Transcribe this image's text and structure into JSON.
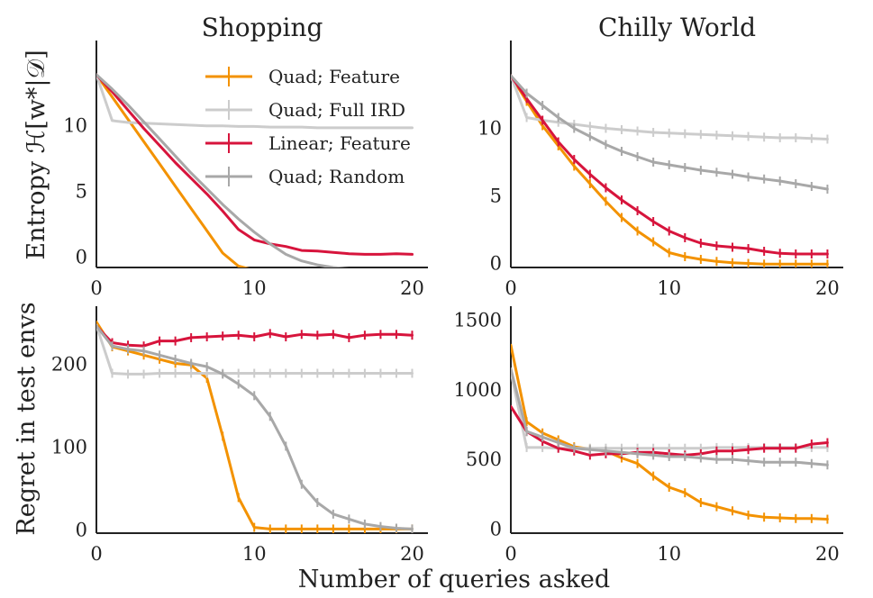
{
  "figure": {
    "xlabel": "Number of queries asked",
    "ylabel_top": "Entropy ℋ[w*|𝒟]",
    "ylabel_bottom": "Regret in test envs"
  },
  "legend": {
    "placement": "top-left panel, upper-middle",
    "entries": [
      {
        "name": "Quad; Feature",
        "color": "#F39200"
      },
      {
        "name": "Quad; Full IRD",
        "color": "#CCCCCC"
      },
      {
        "name": "Linear; Feature",
        "color": "#D7143C"
      },
      {
        "name": "Quad; Random",
        "color": "#A8A8A8"
      }
    ]
  },
  "chart_data": [
    {
      "id": "shopping-entropy",
      "type": "line",
      "title": "Shopping",
      "xlabel": "",
      "ylabel": "Entropy ℋ[w*|𝒟]",
      "xlim": [
        0,
        21
      ],
      "ylim": [
        -0.8,
        16.5
      ],
      "xticks": [
        0,
        10,
        20
      ],
      "yticks": [
        0,
        5,
        10
      ],
      "error_bars": false,
      "series": [
        {
          "name": "Quad; Feature",
          "color": "#F39200",
          "x": [
            0,
            1,
            2,
            3,
            4,
            5,
            6,
            7,
            8,
            9,
            10,
            11,
            12,
            13,
            14,
            15,
            16,
            17,
            18,
            19,
            20
          ],
          "values": [
            13.9,
            12.2,
            10.5,
            8.8,
            7.1,
            5.4,
            3.7,
            2.0,
            0.3,
            -0.7,
            -1.0,
            -1.1,
            -1.1,
            -1.1,
            -1.1,
            -1.1,
            -1.1,
            -1.1,
            -1.1,
            -1.1,
            -1.1
          ]
        },
        {
          "name": "Quad; Full IRD",
          "color": "#CCCCCC",
          "x": [
            0,
            1,
            2,
            3,
            4,
            5,
            6,
            7,
            8,
            9,
            10,
            11,
            12,
            13,
            14,
            15,
            16,
            17,
            18,
            19,
            20
          ],
          "values": [
            13.9,
            10.4,
            10.25,
            10.2,
            10.15,
            10.1,
            10.05,
            10.0,
            10.0,
            9.95,
            9.95,
            9.9,
            9.9,
            9.9,
            9.85,
            9.85,
            9.85,
            9.85,
            9.85,
            9.85,
            9.85
          ]
        },
        {
          "name": "Linear; Feature",
          "color": "#D7143C",
          "x": [
            0,
            1,
            2,
            3,
            4,
            5,
            6,
            7,
            8,
            9,
            10,
            11,
            12,
            13,
            14,
            15,
            16,
            17,
            18,
            19,
            20
          ],
          "values": [
            13.9,
            12.6,
            11.2,
            9.8,
            8.5,
            7.2,
            6.0,
            4.8,
            3.5,
            2.1,
            1.3,
            1.0,
            0.8,
            0.5,
            0.45,
            0.35,
            0.25,
            0.2,
            0.2,
            0.25,
            0.2
          ]
        },
        {
          "name": "Quad; Random",
          "color": "#A8A8A8",
          "x": [
            0,
            1,
            2,
            3,
            4,
            5,
            6,
            7,
            8,
            9,
            10,
            11,
            12,
            13,
            14,
            15,
            16,
            17,
            18,
            19,
            20
          ],
          "values": [
            13.9,
            12.8,
            11.6,
            10.3,
            9.0,
            7.7,
            6.4,
            5.2,
            4.0,
            2.9,
            1.9,
            1.0,
            0.2,
            -0.3,
            -0.6,
            -0.8,
            -0.9,
            -1.0,
            -1.05,
            -1.1,
            -1.1
          ]
        }
      ]
    },
    {
      "id": "chilly-entropy",
      "type": "line",
      "title": "Chilly World",
      "xlabel": "",
      "ylabel": "",
      "xlim": [
        0,
        21
      ],
      "ylim": [
        -0.3,
        16.5
      ],
      "xticks": [
        0,
        10,
        20
      ],
      "yticks": [
        0,
        5,
        10
      ],
      "error_bars": true,
      "series": [
        {
          "name": "Quad; Feature",
          "color": "#F39200",
          "x": [
            0,
            1,
            2,
            3,
            4,
            5,
            6,
            7,
            8,
            9,
            10,
            11,
            12,
            13,
            14,
            15,
            16,
            17,
            18,
            19,
            20
          ],
          "values": [
            13.9,
            12.0,
            10.2,
            8.7,
            7.2,
            5.9,
            4.6,
            3.4,
            2.4,
            1.6,
            0.8,
            0.5,
            0.3,
            0.15,
            0.05,
            0.0,
            -0.05,
            -0.05,
            -0.05,
            -0.05,
            -0.05
          ]
        },
        {
          "name": "Quad; Full IRD",
          "color": "#CCCCCC",
          "x": [
            0,
            1,
            2,
            3,
            4,
            5,
            6,
            7,
            8,
            9,
            10,
            11,
            12,
            13,
            14,
            15,
            16,
            17,
            18,
            19,
            20
          ],
          "values": [
            13.9,
            10.8,
            10.6,
            10.45,
            10.3,
            10.15,
            10.0,
            9.9,
            9.8,
            9.7,
            9.65,
            9.6,
            9.55,
            9.5,
            9.45,
            9.4,
            9.35,
            9.3,
            9.3,
            9.25,
            9.2
          ]
        },
        {
          "name": "Linear; Feature",
          "color": "#D7143C",
          "x": [
            0,
            1,
            2,
            3,
            4,
            5,
            6,
            7,
            8,
            9,
            10,
            11,
            12,
            13,
            14,
            15,
            16,
            17,
            18,
            19,
            20
          ],
          "values": [
            13.9,
            12.2,
            10.6,
            9.0,
            7.7,
            6.6,
            5.6,
            4.7,
            3.9,
            3.1,
            2.4,
            1.9,
            1.5,
            1.3,
            1.2,
            1.1,
            0.9,
            0.75,
            0.7,
            0.7,
            0.7
          ]
        },
        {
          "name": "Quad; Random",
          "color": "#A8A8A8",
          "x": [
            0,
            1,
            2,
            3,
            4,
            5,
            6,
            7,
            8,
            9,
            10,
            11,
            12,
            13,
            14,
            15,
            16,
            17,
            18,
            19,
            20
          ],
          "values": [
            13.9,
            12.6,
            11.7,
            10.8,
            10.0,
            9.4,
            8.8,
            8.3,
            7.9,
            7.5,
            7.3,
            7.1,
            6.9,
            6.75,
            6.6,
            6.4,
            6.25,
            6.1,
            5.9,
            5.7,
            5.5
          ]
        }
      ]
    },
    {
      "id": "shopping-regret",
      "type": "line",
      "title": "",
      "xlabel": "",
      "ylabel": "Regret in test envs",
      "xlim": [
        0,
        21
      ],
      "ylim": [
        -4,
        270
      ],
      "xticks": [
        0,
        10,
        20
      ],
      "yticks": [
        0,
        100,
        200
      ],
      "error_bars": true,
      "series": [
        {
          "name": "Quad; Feature",
          "color": "#F39200",
          "x": [
            0,
            1,
            2,
            3,
            4,
            5,
            6,
            7,
            8,
            9,
            10,
            11,
            12,
            13,
            14,
            15,
            16,
            17,
            18,
            19,
            20
          ],
          "values": [
            251,
            221,
            216,
            211,
            206,
            201,
            199,
            183,
            113,
            39,
            3,
            1,
            1,
            1,
            1,
            1,
            1,
            1,
            1,
            1,
            1
          ]
        },
        {
          "name": "Quad; Full IRD",
          "color": "#CCCCCC",
          "x": [
            0,
            1,
            2,
            3,
            4,
            5,
            6,
            7,
            8,
            9,
            10,
            11,
            12,
            13,
            14,
            15,
            16,
            17,
            18,
            19,
            20
          ],
          "values": [
            247,
            189,
            188,
            188,
            189,
            189,
            189,
            189,
            189,
            189,
            189,
            189,
            189,
            189,
            189,
            189,
            189,
            189,
            189,
            189,
            189
          ]
        },
        {
          "name": "Linear; Feature",
          "color": "#D7143C",
          "x": [
            0,
            1,
            2,
            3,
            4,
            5,
            6,
            7,
            8,
            9,
            10,
            11,
            12,
            13,
            14,
            15,
            16,
            17,
            18,
            19,
            20
          ],
          "values": [
            246,
            226,
            223,
            222,
            228,
            228,
            232,
            233,
            234,
            235,
            233,
            237,
            233,
            236,
            235,
            236,
            232,
            235,
            236,
            236,
            235
          ]
        },
        {
          "name": "Quad; Random",
          "color": "#A8A8A8",
          "x": [
            0,
            1,
            2,
            3,
            4,
            5,
            6,
            7,
            8,
            9,
            10,
            11,
            12,
            13,
            14,
            15,
            16,
            17,
            18,
            19,
            20
          ],
          "values": [
            246,
            222,
            218,
            216,
            211,
            206,
            201,
            197,
            188,
            176,
            162,
            137,
            101,
            55,
            33,
            19,
            13,
            7,
            4,
            2,
            1
          ]
        }
      ]
    },
    {
      "id": "chilly-regret",
      "type": "line",
      "title": "",
      "xlabel": "",
      "ylabel": "",
      "xlim": [
        0,
        21
      ],
      "ylim": [
        -30,
        1600
      ],
      "xticks": [
        0,
        10,
        20
      ],
      "yticks": [
        0,
        500,
        1000,
        1500
      ],
      "error_bars": true,
      "series": [
        {
          "name": "Quad; Feature",
          "color": "#F39200",
          "x": [
            0,
            1,
            2,
            3,
            4,
            5,
            6,
            7,
            8,
            9,
            10,
            11,
            12,
            13,
            14,
            15,
            16,
            17,
            18,
            19,
            20
          ],
          "values": [
            1320,
            770,
            690,
            640,
            590,
            575,
            560,
            510,
            470,
            380,
            300,
            260,
            190,
            160,
            130,
            100,
            85,
            80,
            75,
            75,
            70
          ]
        },
        {
          "name": "Quad; Full IRD",
          "color": "#CCCCCC",
          "x": [
            0,
            1,
            2,
            3,
            4,
            5,
            6,
            7,
            8,
            9,
            10,
            11,
            12,
            13,
            14,
            15,
            16,
            17,
            18,
            19,
            20
          ],
          "values": [
            1130,
            585,
            585,
            580,
            580,
            580,
            580,
            580,
            580,
            580,
            580,
            580,
            580,
            585,
            585,
            585,
            585,
            585,
            585,
            585,
            585
          ]
        },
        {
          "name": "Linear; Feature",
          "color": "#D7143C",
          "x": [
            0,
            1,
            2,
            3,
            4,
            5,
            6,
            7,
            8,
            9,
            10,
            11,
            12,
            13,
            14,
            15,
            16,
            17,
            18,
            19,
            20
          ],
          "values": [
            880,
            700,
            630,
            580,
            560,
            530,
            540,
            540,
            550,
            550,
            540,
            530,
            540,
            560,
            560,
            570,
            580,
            580,
            580,
            610,
            620
          ]
        },
        {
          "name": "Quad; Random",
          "color": "#A8A8A8",
          "x": [
            0,
            1,
            2,
            3,
            4,
            5,
            6,
            7,
            8,
            9,
            10,
            11,
            12,
            13,
            14,
            15,
            16,
            17,
            18,
            19,
            20
          ],
          "values": [
            1150,
            700,
            660,
            620,
            580,
            570,
            560,
            550,
            540,
            530,
            520,
            520,
            510,
            500,
            500,
            490,
            480,
            480,
            480,
            470,
            460
          ]
        }
      ]
    }
  ]
}
